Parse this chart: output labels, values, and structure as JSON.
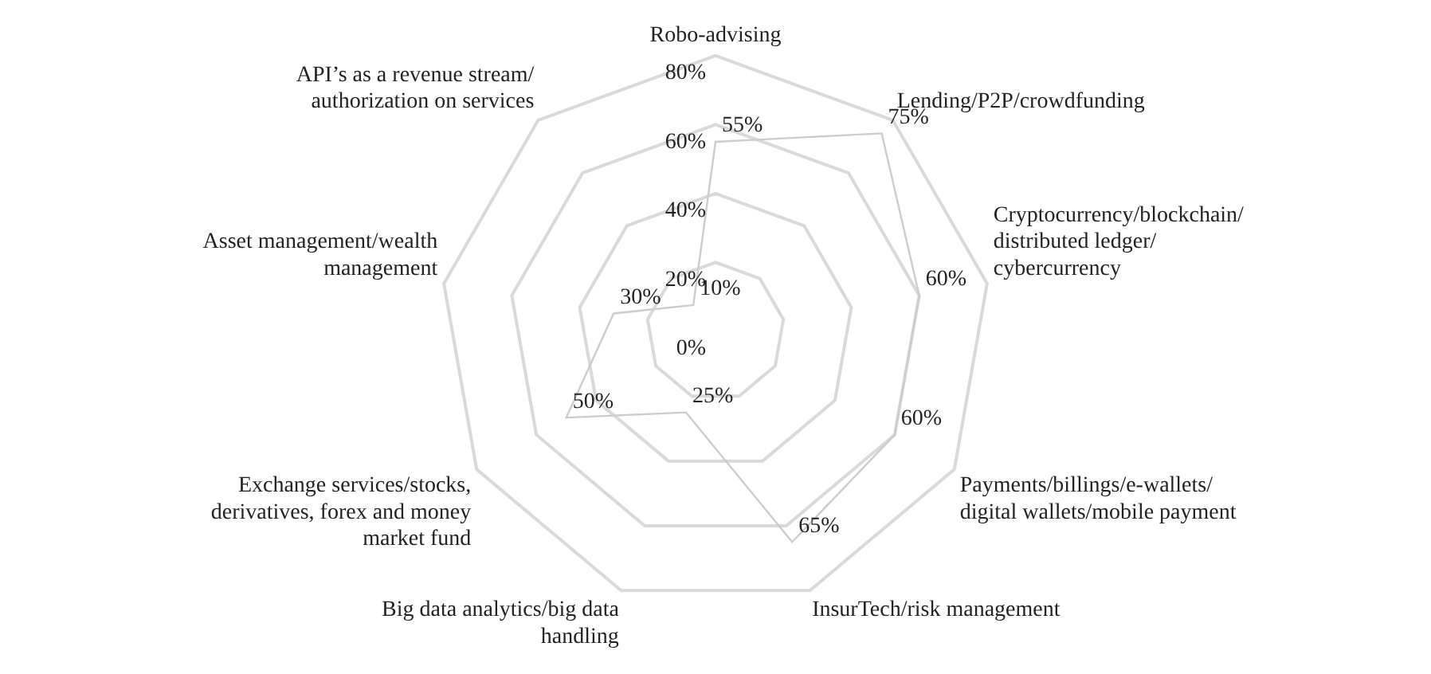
{
  "chart_data": {
    "type": "radar",
    "categories": [
      "Robo-advising",
      "Lending/P2P/crowdfunding",
      "Cryptocurrency/blockchain/ distributed ledger/ cybercurrency",
      "Payments/billings/e-wallets/ digital wallets/mobile payment",
      "InsurTech/risk management",
      "Big data analytics/big data handling",
      "Exchange services/stocks, derivatives, forex and money market fund",
      "Asset management/wealth management",
      "API’s as a revenue stream/ authorization on services"
    ],
    "series": [
      {
        "color": "#cccccc",
        "values": [
          55,
          75,
          60,
          60,
          65,
          25,
          50,
          30,
          10
        ],
        "value_labels": [
          "55%",
          "75%",
          "60%",
          "60%",
          "65%",
          "25%",
          "50%",
          "30%",
          "10%"
        ]
      }
    ],
    "ylim": [
      0,
      80
    ],
    "yticks": [
      {
        "value": 0,
        "label": "0%"
      },
      {
        "value": 20,
        "label": "20%"
      },
      {
        "value": 40,
        "label": "40%"
      },
      {
        "value": 60,
        "label": "60%"
      },
      {
        "value": 80,
        "label": "80%"
      }
    ],
    "grid": true,
    "legend": false,
    "marker": "none"
  }
}
